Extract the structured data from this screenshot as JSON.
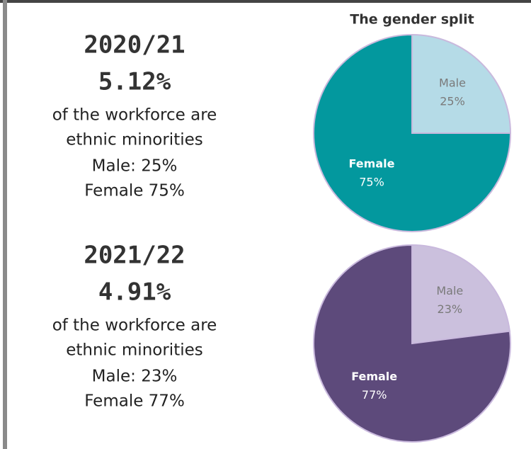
{
  "panels": [
    {
      "period": "2020/21",
      "headline": "5.12%",
      "description": [
        "of the workforce are",
        "ethnic minorities"
      ],
      "male": "Male: 25%",
      "female": "Female 75%"
    },
    {
      "period": "2021/22",
      "headline": "4.91%",
      "description": [
        "of the workforce are",
        "ethnic minorities"
      ],
      "male": "Male: 23%",
      "female": "Female 77%"
    }
  ],
  "chart_data": [
    {
      "type": "pie",
      "title": "The gender split",
      "categories": [
        "Male",
        "Female"
      ],
      "values": [
        25,
        75
      ],
      "value_labels": [
        "25%",
        "75%"
      ],
      "colors": [
        "#b5dbe7",
        "#03989e"
      ]
    },
    {
      "type": "pie",
      "categories": [
        "Male",
        "Female"
      ],
      "values": [
        23,
        77
      ],
      "value_labels": [
        "23%",
        "77%"
      ],
      "colors": [
        "#cbc0dd",
        "#5d4a7b"
      ]
    }
  ]
}
